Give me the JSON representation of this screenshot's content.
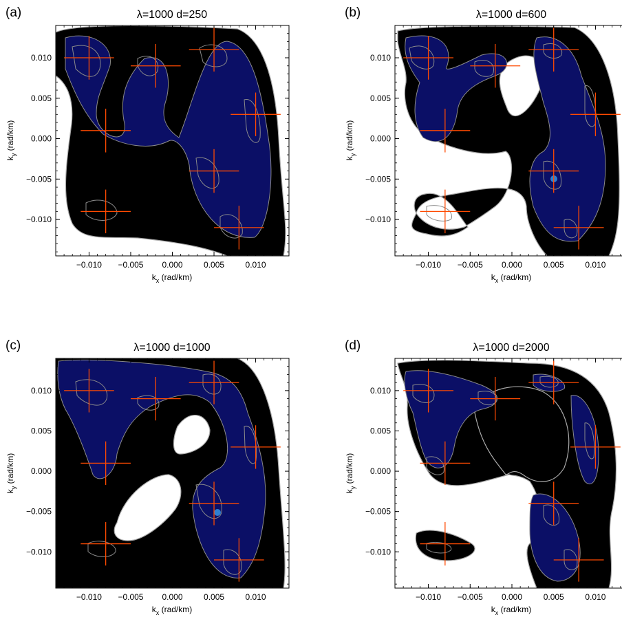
{
  "panels": [
    {
      "tag": "(a)",
      "title": "λ=1000 d=250"
    },
    {
      "tag": "(b)",
      "title": "λ=1000 d=600"
    },
    {
      "tag": "(c)",
      "title": "λ=1000 d=1000"
    },
    {
      "tag": "(d)",
      "title": "λ=1000 d=2000"
    }
  ],
  "colors": {
    "background": "#000000",
    "density": "#0b0f66",
    "contour": "#8a8a8a",
    "marker": "#ff4a00",
    "peak": "#2f7fd0"
  },
  "chart_data": [
    {
      "type": "contour",
      "title": "λ=1000 d=250",
      "xlabel_main": "k",
      "xlabel_sub": "x",
      "xlabel_unit": " (rad/km)",
      "ylabel_main": "k",
      "ylabel_sub": "y",
      "ylabel_unit": " (rad/km)",
      "xlim": [
        -0.014,
        0.014
      ],
      "ylim": [
        -0.0145,
        0.014
      ],
      "xticks": [
        "−0.010",
        "−0.005",
        "0.000",
        "0.005",
        "0.010"
      ],
      "xtick_values": [
        -0.01,
        -0.005,
        0,
        0.005,
        0.01
      ],
      "yticks": [
        "0.010",
        "0.005",
        "0.000",
        "−0.005",
        "−0.010"
      ],
      "ytick_values": [
        0.01,
        0.005,
        0,
        -0.005,
        -0.01
      ],
      "markers": [
        {
          "x": -0.01,
          "y": 0.01
        },
        {
          "x": -0.002,
          "y": 0.009
        },
        {
          "x": 0.005,
          "y": 0.011
        },
        {
          "x": -0.008,
          "y": 0.001
        },
        {
          "x": 0.01,
          "y": 0.003
        },
        {
          "x": 0.005,
          "y": -0.004
        },
        {
          "x": -0.008,
          "y": -0.009
        },
        {
          "x": 0.008,
          "y": -0.011
        }
      ]
    },
    {
      "type": "contour",
      "title": "λ=1000 d=600",
      "xlabel_main": "k",
      "xlabel_sub": "x",
      "xlabel_unit": " (rad/km)",
      "ylabel_main": "k",
      "ylabel_sub": "y",
      "ylabel_unit": " (rad/km)",
      "xlim": [
        -0.014,
        0.014
      ],
      "ylim": [
        -0.0145,
        0.014
      ],
      "xticks": [
        "−0.010",
        "−0.005",
        "0.000",
        "0.005",
        "0.010"
      ],
      "xtick_values": [
        -0.01,
        -0.005,
        0,
        0.005,
        0.01
      ],
      "yticks": [
        "0.010",
        "0.005",
        "0.000",
        "−0.005",
        "−0.010"
      ],
      "ytick_values": [
        0.01,
        0.005,
        0,
        -0.005,
        -0.01
      ],
      "markers": [
        {
          "x": -0.01,
          "y": 0.01
        },
        {
          "x": -0.002,
          "y": 0.009
        },
        {
          "x": 0.005,
          "y": 0.011
        },
        {
          "x": -0.008,
          "y": 0.001
        },
        {
          "x": 0.01,
          "y": 0.003
        },
        {
          "x": 0.005,
          "y": -0.004
        },
        {
          "x": -0.008,
          "y": -0.009
        },
        {
          "x": 0.008,
          "y": -0.011
        }
      ]
    },
    {
      "type": "contour",
      "title": "λ=1000 d=1000",
      "xlabel_main": "k",
      "xlabel_sub": "x",
      "xlabel_unit": " (rad/km)",
      "ylabel_main": "k",
      "ylabel_sub": "y",
      "ylabel_unit": " (rad/km)",
      "xlim": [
        -0.014,
        0.014
      ],
      "ylim": [
        -0.0145,
        0.014
      ],
      "xticks": [
        "−0.010",
        "−0.005",
        "0.000",
        "0.005",
        "0.010"
      ],
      "xtick_values": [
        -0.01,
        -0.005,
        0,
        0.005,
        0.01
      ],
      "yticks": [
        "0.010",
        "0.005",
        "0.000",
        "−0.005",
        "−0.010"
      ],
      "ytick_values": [
        0.01,
        0.005,
        0,
        -0.005,
        -0.01
      ],
      "markers": [
        {
          "x": -0.01,
          "y": 0.01
        },
        {
          "x": -0.002,
          "y": 0.009
        },
        {
          "x": 0.005,
          "y": 0.011
        },
        {
          "x": -0.008,
          "y": 0.001
        },
        {
          "x": 0.01,
          "y": 0.003
        },
        {
          "x": 0.005,
          "y": -0.004
        },
        {
          "x": -0.008,
          "y": -0.009
        },
        {
          "x": 0.008,
          "y": -0.011
        }
      ]
    },
    {
      "type": "contour",
      "title": "λ=1000 d=2000",
      "xlabel_main": "k",
      "xlabel_sub": "x",
      "xlabel_unit": " (rad/km)",
      "ylabel_main": "k",
      "ylabel_sub": "y",
      "ylabel_unit": " (rad/km)",
      "xlim": [
        -0.014,
        0.014
      ],
      "ylim": [
        -0.0145,
        0.014
      ],
      "xticks": [
        "−0.010",
        "−0.005",
        "0.000",
        "0.005",
        "0.010"
      ],
      "xtick_values": [
        -0.01,
        -0.005,
        0,
        0.005,
        0.01
      ],
      "yticks": [
        "0.010",
        "0.005",
        "0.000",
        "−0.005",
        "−0.010"
      ],
      "ytick_values": [
        0.01,
        0.005,
        0,
        -0.005,
        -0.01
      ],
      "markers": [
        {
          "x": -0.01,
          "y": 0.01
        },
        {
          "x": -0.002,
          "y": 0.009
        },
        {
          "x": 0.005,
          "y": 0.011
        },
        {
          "x": -0.008,
          "y": 0.001
        },
        {
          "x": 0.01,
          "y": 0.003
        },
        {
          "x": 0.005,
          "y": -0.004
        },
        {
          "x": -0.008,
          "y": -0.009
        },
        {
          "x": 0.008,
          "y": -0.011
        }
      ]
    }
  ]
}
